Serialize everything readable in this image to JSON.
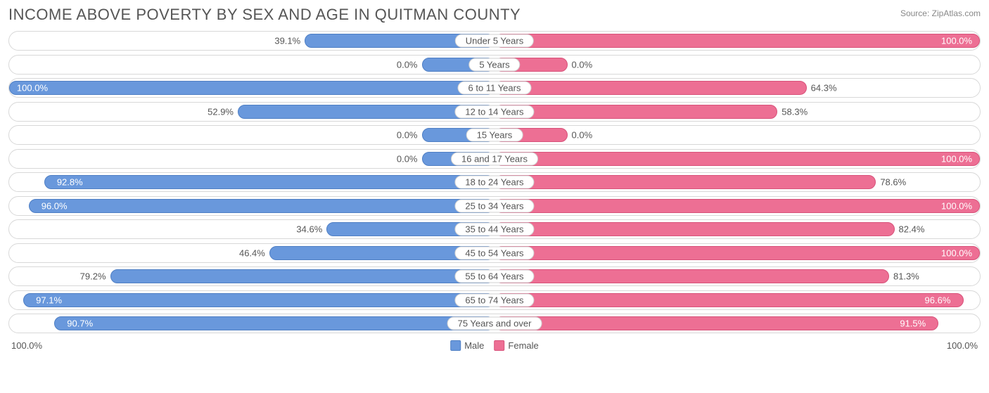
{
  "title": "INCOME ABOVE POVERTY BY SEX AND AGE IN QUITMAN COUNTY",
  "source": "Source: ZipAtlas.com",
  "colors": {
    "male_fill": "#6998dc",
    "male_border": "#4f7fc4",
    "female_fill": "#ed6f94",
    "female_border": "#d8527a",
    "row_border": "#d8d8d8",
    "text": "#555555",
    "bg": "#ffffff"
  },
  "min_bar_pct": 15,
  "axis": {
    "left": "100.0%",
    "right": "100.0%"
  },
  "legend": {
    "male": "Male",
    "female": "Female"
  },
  "rows": [
    {
      "category": "Under 5 Years",
      "male": 39.1,
      "male_label": "39.1%",
      "female": 100.0,
      "female_label": "100.0%"
    },
    {
      "category": "5 Years",
      "male": 0.0,
      "male_label": "0.0%",
      "female": 0.0,
      "female_label": "0.0%"
    },
    {
      "category": "6 to 11 Years",
      "male": 100.0,
      "male_label": "100.0%",
      "female": 64.3,
      "female_label": "64.3%"
    },
    {
      "category": "12 to 14 Years",
      "male": 52.9,
      "male_label": "52.9%",
      "female": 58.3,
      "female_label": "58.3%"
    },
    {
      "category": "15 Years",
      "male": 0.0,
      "male_label": "0.0%",
      "female": 0.0,
      "female_label": "0.0%"
    },
    {
      "category": "16 and 17 Years",
      "male": 0.0,
      "male_label": "0.0%",
      "female": 100.0,
      "female_label": "100.0%"
    },
    {
      "category": "18 to 24 Years",
      "male": 92.8,
      "male_label": "92.8%",
      "female": 78.6,
      "female_label": "78.6%"
    },
    {
      "category": "25 to 34 Years",
      "male": 96.0,
      "male_label": "96.0%",
      "female": 100.0,
      "female_label": "100.0%"
    },
    {
      "category": "35 to 44 Years",
      "male": 34.6,
      "male_label": "34.6%",
      "female": 82.4,
      "female_label": "82.4%"
    },
    {
      "category": "45 to 54 Years",
      "male": 46.4,
      "male_label": "46.4%",
      "female": 100.0,
      "female_label": "100.0%"
    },
    {
      "category": "55 to 64 Years",
      "male": 79.2,
      "male_label": "79.2%",
      "female": 81.3,
      "female_label": "81.3%"
    },
    {
      "category": "65 to 74 Years",
      "male": 97.1,
      "male_label": "97.1%",
      "female": 96.6,
      "female_label": "96.6%"
    },
    {
      "category": "75 Years and over",
      "male": 90.7,
      "male_label": "90.7%",
      "female": 91.5,
      "female_label": "91.5%"
    }
  ]
}
